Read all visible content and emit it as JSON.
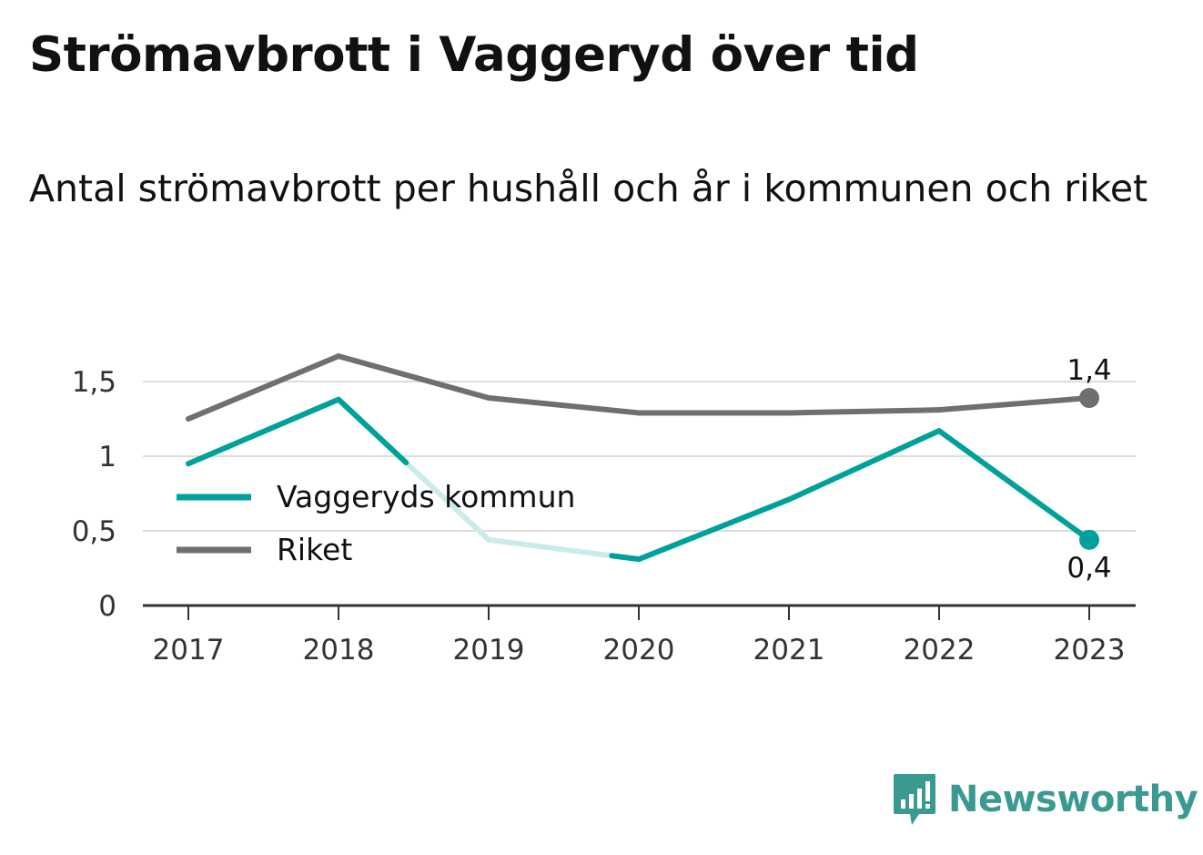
{
  "header": {
    "title": "Strömavbrott i Vaggeryd över tid",
    "subtitle": "Antal strömavbrott per hushåll och år i kommunen och riket"
  },
  "brand": {
    "name": "Newsworthy",
    "icon": "newsworthy-logo-icon",
    "color": "#3a9a91"
  },
  "chart_data": {
    "type": "line",
    "categories": [
      "2017",
      "2018",
      "2019",
      "2020",
      "2021",
      "2022",
      "2023"
    ],
    "ylim": [
      0,
      1.75
    ],
    "yticks": [
      {
        "value": 0,
        "label": "0"
      },
      {
        "value": 0.5,
        "label": "0,5"
      },
      {
        "value": 1,
        "label": "1"
      },
      {
        "value": 1.5,
        "label": "1,5"
      }
    ],
    "grid": true,
    "legend_position": "middle-left",
    "series": [
      {
        "name": "Vaggeryds kommun",
        "color": "#00a19a",
        "faded_color": "#c9ecea",
        "values": [
          0.95,
          1.38,
          0.44,
          0.31,
          0.71,
          1.17,
          0.44
        ],
        "faded_segments": [
          [
            1,
            3
          ]
        ],
        "end_label": "0,4"
      },
      {
        "name": "Riket",
        "color": "#6e6e73",
        "values": [
          1.25,
          1.67,
          1.39,
          1.29,
          1.29,
          1.31,
          1.39
        ],
        "end_label": "1,4"
      }
    ]
  }
}
